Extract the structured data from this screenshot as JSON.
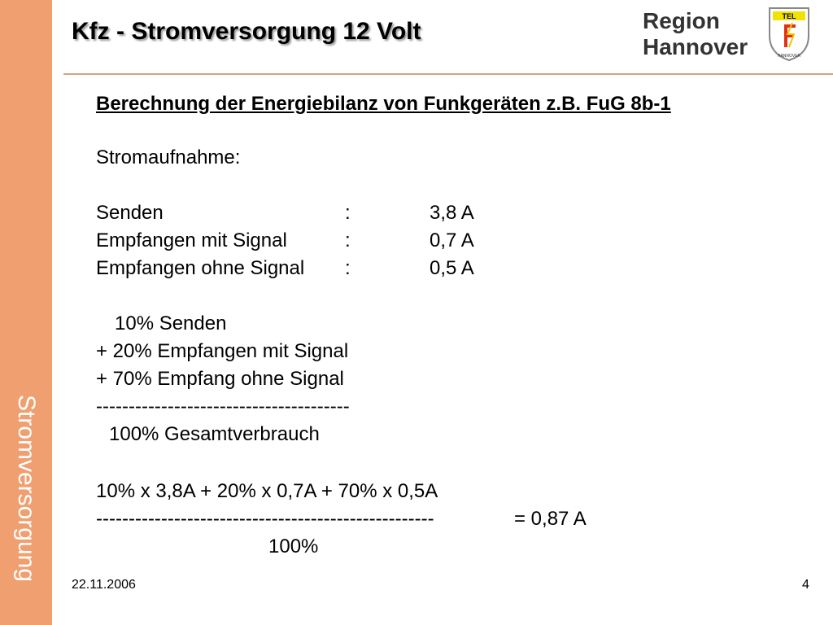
{
  "sidebar": {
    "label": "Stromversorgung"
  },
  "header": {
    "title": "Kfz - Stromversorgung 12 Volt",
    "logo_line1": "Region",
    "logo_line2": "Hannover",
    "shield_top": "TEL",
    "shield_bottom": "HANNOVER"
  },
  "content": {
    "heading": "Berechnung der Energiebilanz von Funkgeräten z.B. FuG 8b-1",
    "intro": "Stromaufnahme:",
    "rows": [
      {
        "label": "Senden",
        "sep": ":",
        "value": "3,8 A"
      },
      {
        "label": "Empfangen mit Signal",
        "sep": ":",
        "value": "0,7 A"
      },
      {
        "label": "Empfangen ohne Signal",
        "sep": ":",
        "value": "0,5 A"
      }
    ],
    "breakdown": [
      "10% Senden",
      "+ 20% Empfangen mit Signal",
      "+ 70% Empfang ohne Signal"
    ],
    "divider1": "---------------------------------------",
    "total": "100% Gesamtverbrauch",
    "formula_numerator": "10% x 3,8A + 20% x 0,7A + 70% x 0,5A",
    "formula_divider": "----------------------------------------------------",
    "formula_result": "=  0,87 A",
    "formula_denominator": "100%"
  },
  "footer": {
    "date": "22.11.2006",
    "page": "4"
  }
}
